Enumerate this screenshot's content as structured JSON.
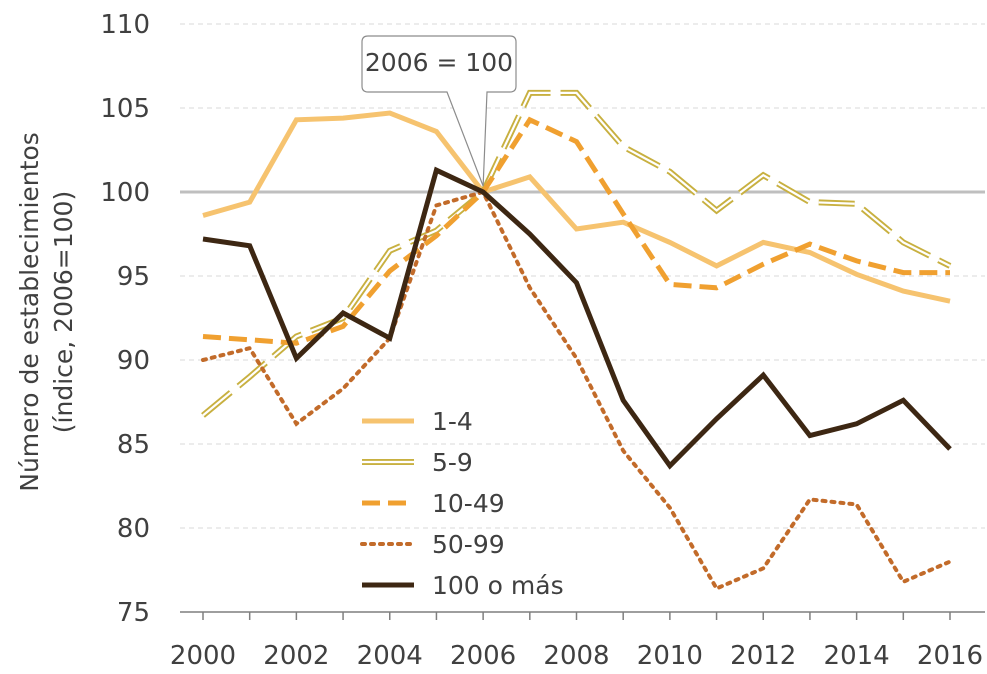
{
  "chart_data": {
    "type": "line",
    "title": "",
    "ylabel_line1": "Número de establecimientos",
    "ylabel_line2": "(índice, 2006=100)",
    "xlabel": "",
    "ylim": [
      75,
      110
    ],
    "yticks": [
      "75",
      "80",
      "85",
      "90",
      "95",
      "100",
      "105",
      "110"
    ],
    "xlim": [
      2000,
      2016
    ],
    "xticks": [
      "2000",
      "2002",
      "2004",
      "2006",
      "2008",
      "2010",
      "2012",
      "2014",
      "2016"
    ],
    "reference_line": 100,
    "callout": "2006 = 100",
    "grid": "horizontal dashed",
    "legend_position": "lower-center",
    "x": [
      2000,
      2001,
      2002,
      2003,
      2004,
      2005,
      2006,
      2007,
      2008,
      2009,
      2010,
      2011,
      2012,
      2013,
      2014,
      2015,
      2016
    ],
    "series": [
      {
        "name": "1-4",
        "style": "solid",
        "color": "#f6c36f",
        "values": [
          98.6,
          99.4,
          104.3,
          104.4,
          104.7,
          103.6,
          100.0,
          100.9,
          97.8,
          98.2,
          97.0,
          95.6,
          97.0,
          96.4,
          95.1,
          94.1,
          93.5
        ]
      },
      {
        "name": "5-9",
        "style": "double",
        "color": "#c8b040",
        "values": [
          86.7,
          89.0,
          91.4,
          92.5,
          96.5,
          97.7,
          100.0,
          105.9,
          105.9,
          102.7,
          101.2,
          98.9,
          101.0,
          99.4,
          99.3,
          97.0,
          95.6
        ]
      },
      {
        "name": "10-49",
        "style": "dashed",
        "color": "#f0a030",
        "values": [
          91.4,
          91.2,
          91.0,
          92.0,
          95.3,
          97.4,
          100.0,
          104.3,
          103.0,
          98.7,
          94.5,
          94.3,
          95.7,
          96.9,
          95.9,
          95.2,
          95.2
        ]
      },
      {
        "name": "50-99",
        "style": "dotted",
        "color": "#c26b2a",
        "values": [
          90.0,
          90.7,
          86.2,
          88.3,
          91.3,
          99.2,
          100.0,
          94.3,
          90.1,
          84.6,
          81.2,
          76.4,
          77.6,
          81.7,
          81.4,
          76.8,
          78.0
        ]
      },
      {
        "name": "100 o más",
        "style": "solid-dark",
        "color": "#3d2713",
        "values": [
          97.2,
          96.8,
          90.1,
          92.8,
          91.3,
          101.3,
          100.0,
          97.5,
          94.6,
          87.6,
          83.7,
          86.5,
          89.1,
          85.5,
          86.2,
          87.6,
          84.7
        ]
      }
    ]
  }
}
